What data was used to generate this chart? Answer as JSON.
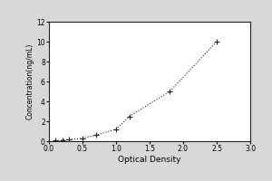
{
  "x_data": [
    0.1,
    0.2,
    0.3,
    0.5,
    0.7,
    1.0,
    1.2,
    1.8,
    2.5
  ],
  "y_data": [
    0.05,
    0.1,
    0.15,
    0.3,
    0.6,
    1.2,
    2.5,
    5.0,
    10.0
  ],
  "xlabel": "Optical Density",
  "ylabel": "Concentration(ng/mL)",
  "xlim": [
    0,
    3
  ],
  "ylim": [
    0,
    12
  ],
  "xticks": [
    0,
    0.5,
    1.0,
    1.5,
    2.0,
    2.5,
    3.0
  ],
  "yticks": [
    0,
    2,
    4,
    6,
    8,
    10,
    12
  ],
  "marker": "+",
  "marker_color": "#222222",
  "line_color": "#222222",
  "line_style": "dotted",
  "plot_bg_color": "#ffffff",
  "fig_bg_color": "#d8d8d8",
  "tick_fontsize": 5.5,
  "label_fontsize": 6.5,
  "ylabel_fontsize": 5.5
}
